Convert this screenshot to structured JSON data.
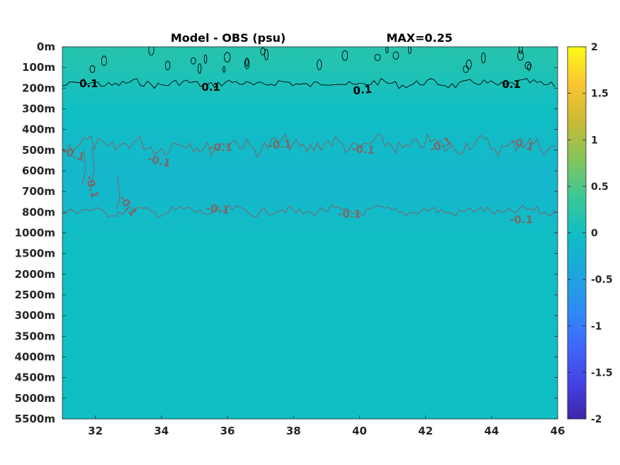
{
  "chart_data": {
    "type": "heatmap",
    "title": "Model - OBS (psu)",
    "subtitle": "MAX=0.25",
    "xlabel": "",
    "ylabel": "",
    "x_ticks": [
      "32",
      "34",
      "36",
      "38",
      "40",
      "42",
      "44",
      "46"
    ],
    "x_tick_values": [
      32,
      34,
      36,
      38,
      40,
      42,
      44,
      46
    ],
    "xlim": [
      31,
      46
    ],
    "y_ticks": [
      "0m",
      "100m",
      "200m",
      "300m",
      "400m",
      "500m",
      "600m",
      "700m",
      "800m",
      "1000m",
      "1500m",
      "2000m",
      "2500m",
      "3000m",
      "3500m",
      "4000m",
      "4500m",
      "5000m",
      "5500m"
    ],
    "colorbar": {
      "ticks": [
        "2",
        "1.5",
        "1",
        "0.5",
        "0",
        "-0.5",
        "-1",
        "-1.5",
        "-2"
      ],
      "tick_values": [
        2,
        1.5,
        1,
        0.5,
        0,
        -0.5,
        -1,
        -1.5,
        -2
      ],
      "clim": [
        -2,
        2
      ],
      "colormap": "parula"
    },
    "depth_profile": [
      {
        "depth": "0m",
        "value": 0.2
      },
      {
        "depth": "100m",
        "value": 0.15
      },
      {
        "depth": "200m",
        "value": 0.08
      },
      {
        "depth": "300m",
        "value": 0.0
      },
      {
        "depth": "400m",
        "value": -0.05
      },
      {
        "depth": "500m",
        "value": -0.1
      },
      {
        "depth": "600m",
        "value": -0.14
      },
      {
        "depth": "700m",
        "value": -0.15
      },
      {
        "depth": "800m",
        "value": -0.1
      },
      {
        "depth": "1000m",
        "value": -0.02
      },
      {
        "depth": "1500m",
        "value": 0.0
      },
      {
        "depth": "2000m",
        "value": 0.0
      },
      {
        "depth": "2500m",
        "value": 0.0
      },
      {
        "depth": "3000m",
        "value": 0.0
      },
      {
        "depth": "3500m",
        "value": 0.0
      },
      {
        "depth": "4000m",
        "value": 0.0
      },
      {
        "depth": "4500m",
        "value": 0.0
      },
      {
        "depth": "5000m",
        "value": 0.0
      },
      {
        "depth": "5500m",
        "value": 0.0
      }
    ],
    "contours": [
      {
        "level": "0.1",
        "color": "#000000",
        "labels": [
          {
            "text": "0.1",
            "x": 31.8
          },
          {
            "text": "0.1",
            "x": 35.5
          },
          {
            "text": "0.1",
            "x": 40.1
          },
          {
            "text": "0.1",
            "x": 44.6
          }
        ]
      },
      {
        "level": "-0.1",
        "color": "#8c5a5a",
        "labels": [
          {
            "text": "-0.1",
            "x": 31.3
          },
          {
            "text": "-0.1",
            "x": 33.9
          },
          {
            "text": "-0.1",
            "x": 35.8
          },
          {
            "text": "-0.1",
            "x": 37.6
          },
          {
            "text": "-0.1",
            "x": 40.1
          },
          {
            "text": "-0.1",
            "x": 42.5
          },
          {
            "text": "-0.1",
            "x": 44.9
          },
          {
            "text": "-0.1",
            "x": 31.8
          },
          {
            "text": "-0.1",
            "x": 32.9
          },
          {
            "text": "-0.1",
            "x": 35.7
          },
          {
            "text": "-0.1",
            "x": 39.7
          },
          {
            "text": "-0.1",
            "x": 44.9
          }
        ]
      }
    ]
  }
}
